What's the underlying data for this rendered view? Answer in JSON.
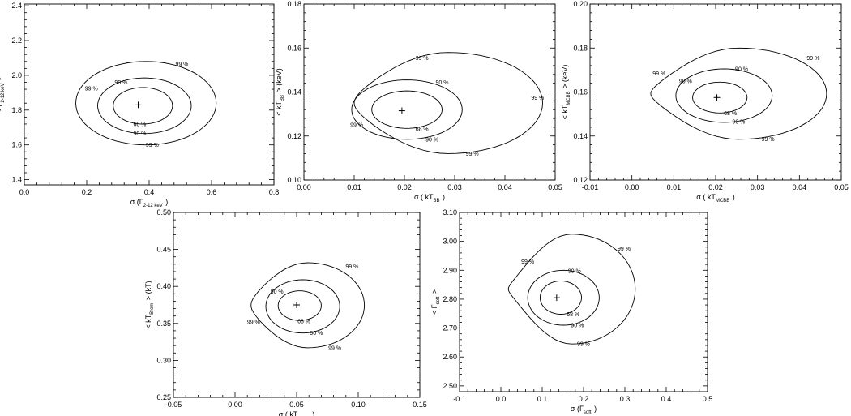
{
  "chart_data": [
    {
      "type": "contour",
      "xlabel_main": "σ (Γ",
      "xlabel_sub": "2-12 keV",
      "xlabel_tail": ")",
      "ylabel_main": "< Γ",
      "ylabel_sub": "2-12 keV",
      "ylabel_tail": ">",
      "xlim": [
        0.0,
        0.8
      ],
      "ylim": [
        1.37,
        2.41
      ],
      "xticks": [
        0.0,
        0.2,
        0.4,
        0.6,
        0.8
      ],
      "xticklabels": [
        "0.0",
        "0.2",
        "0.4",
        "0.6",
        "0.8"
      ],
      "yticks": [
        1.4,
        1.6,
        1.8,
        2.0,
        2.2,
        2.4
      ],
      "yticklabels": [
        "1.4",
        "1.6",
        "1.8",
        "2.0",
        "2.2",
        "2.4"
      ],
      "best_fit": {
        "x": 0.365,
        "y": 1.83
      },
      "contours": [
        {
          "level": "68 %",
          "xmin": 0.285,
          "xmax": 0.475,
          "ymin": 1.72,
          "ymax": 1.93,
          "pinch": 0.0
        },
        {
          "level": "90 %",
          "xmin": 0.235,
          "xmax": 0.535,
          "ymin": 1.665,
          "ymax": 1.985,
          "pinch": 0.0
        },
        {
          "level": "99 %",
          "xmin": 0.165,
          "xmax": 0.615,
          "ymin": 1.6,
          "ymax": 2.08,
          "pinch": 0.0
        }
      ],
      "contour_labels": [
        {
          "text": "68 %",
          "x": 0.37,
          "y": 1.72
        },
        {
          "text": "90 %",
          "x": 0.37,
          "y": 1.665
        },
        {
          "text": "90 %",
          "x": 0.31,
          "y": 1.96
        },
        {
          "text": "99 %",
          "x": 0.41,
          "y": 1.6
        },
        {
          "text": "99 %",
          "x": 0.505,
          "y": 2.065
        },
        {
          "text": "99 %",
          "x": 0.215,
          "y": 1.925
        }
      ]
    },
    {
      "type": "contour",
      "xlabel_main": "σ ( kT",
      "xlabel_sub": "BB",
      "xlabel_tail": ")",
      "ylabel_main": "< kT",
      "ylabel_sub": "BB",
      "ylabel_tail": "> (keV)",
      "xlim": [
        0.0,
        0.05
      ],
      "ylim": [
        0.1,
        0.18
      ],
      "xticks": [
        0.0,
        0.01,
        0.02,
        0.03,
        0.04,
        0.05
      ],
      "xticklabels": [
        "0.00",
        "0.01",
        "0.02",
        "0.03",
        "0.04",
        "0.05"
      ],
      "yticks": [
        0.1,
        0.12,
        0.14,
        0.16,
        0.18
      ],
      "yticklabels": [
        "0.10",
        "0.12",
        "0.14",
        "0.16",
        "0.18"
      ],
      "best_fit": {
        "x": 0.0195,
        "y": 0.1315
      },
      "contours": [
        {
          "level": "68 %",
          "xmin": 0.0135,
          "xmax": 0.0275,
          "ymin": 0.1235,
          "ymax": 0.1405,
          "pinch": 0.0
        },
        {
          "level": "90 %",
          "xmin": 0.0095,
          "xmax": 0.0315,
          "ymin": 0.1185,
          "ymax": 0.1455,
          "pinch": 0.0
        },
        {
          "level": "99 %",
          "xmin": 0.01,
          "xmax": 0.0475,
          "ymin": 0.112,
          "ymax": 0.158,
          "pinch": 0.45
        }
      ],
      "contour_labels": [
        {
          "text": "68 %",
          "x": 0.0235,
          "y": 0.1232
        },
        {
          "text": "90 %",
          "x": 0.0255,
          "y": 0.1185
        },
        {
          "text": "90 %",
          "x": 0.0275,
          "y": 0.1445
        },
        {
          "text": "99 %",
          "x": 0.0335,
          "y": 0.112
        },
        {
          "text": "99 %",
          "x": 0.0235,
          "y": 0.1555
        },
        {
          "text": "99 %",
          "x": 0.0465,
          "y": 0.1375
        },
        {
          "text": "99 %",
          "x": 0.0105,
          "y": 0.125
        }
      ]
    },
    {
      "type": "contour",
      "xlabel_main": "σ ( kT",
      "xlabel_sub": "MCBB",
      "xlabel_tail": ")",
      "ylabel_main": "< kT",
      "ylabel_sub": "MCBB",
      "ylabel_tail": "> (keV)",
      "xlim": [
        -0.01,
        0.05
      ],
      "ylim": [
        0.12,
        0.2
      ],
      "xticks": [
        -0.01,
        0.0,
        0.01,
        0.02,
        0.03,
        0.04,
        0.05
      ],
      "xticklabels": [
        "-0.01",
        "0.00",
        "0.01",
        "0.02",
        "0.03",
        "0.04",
        "0.05"
      ],
      "yticks": [
        0.12,
        0.14,
        0.16,
        0.18,
        0.2
      ],
      "yticklabels": [
        "0.12",
        "0.14",
        "0.16",
        "0.18",
        "0.20"
      ],
      "best_fit": {
        "x": 0.0203,
        "y": 0.1575
      },
      "contours": [
        {
          "level": "68 %",
          "xmin": 0.0145,
          "xmax": 0.0275,
          "ymin": 0.1505,
          "ymax": 0.1645,
          "pinch": 0.0
        },
        {
          "level": "90 %",
          "xmin": 0.0105,
          "xmax": 0.0335,
          "ymin": 0.1462,
          "ymax": 0.1705,
          "pinch": 0.0
        },
        {
          "level": "99 %",
          "xmin": 0.0045,
          "xmax": 0.0465,
          "ymin": 0.1385,
          "ymax": 0.18,
          "pinch": 0.55
        }
      ],
      "contour_labels": [
        {
          "text": "68 %",
          "x": 0.0235,
          "y": 0.1505
        },
        {
          "text": "90 %",
          "x": 0.0255,
          "y": 0.1465
        },
        {
          "text": "90 %",
          "x": 0.0262,
          "y": 0.1705
        },
        {
          "text": "90 %",
          "x": 0.0128,
          "y": 0.165
        },
        {
          "text": "99 %",
          "x": 0.0325,
          "y": 0.1387
        },
        {
          "text": "99 %",
          "x": 0.0433,
          "y": 0.1755
        },
        {
          "text": "99 %",
          "x": 0.0065,
          "y": 0.1685
        }
      ]
    },
    {
      "type": "contour",
      "xlabel_main": "σ ( kT",
      "xlabel_sub": "Brem",
      "xlabel_tail": ")",
      "ylabel_main": "< kT",
      "ylabel_sub": "Brem",
      "ylabel_tail": "> (kT)",
      "xlim": [
        -0.05,
        0.15
      ],
      "ylim": [
        0.25,
        0.5
      ],
      "xticks": [
        -0.05,
        0.0,
        0.05,
        0.1,
        0.15
      ],
      "xticklabels": [
        "-0.05",
        "0.00",
        "0.05",
        "0.10",
        "0.15"
      ],
      "yticks": [
        0.25,
        0.3,
        0.35,
        0.4,
        0.45,
        0.5
      ],
      "yticklabels": [
        "0.25",
        "0.30",
        "0.35",
        "0.40",
        "0.45",
        "0.50"
      ],
      "best_fit": {
        "x": 0.05,
        "y": 0.375
      },
      "contours": [
        {
          "level": "68 %",
          "xmin": 0.035,
          "xmax": 0.07,
          "ymin": 0.354,
          "ymax": 0.394,
          "pinch": 0.0
        },
        {
          "level": "90 %",
          "xmin": 0.025,
          "xmax": 0.085,
          "ymin": 0.337,
          "ymax": 0.409,
          "pinch": 0.0
        },
        {
          "level": "99 %",
          "xmin": 0.013,
          "xmax": 0.105,
          "ymin": 0.317,
          "ymax": 0.432,
          "pinch": 0.45
        }
      ],
      "contour_labels": [
        {
          "text": "68 %",
          "x": 0.056,
          "y": 0.353
        },
        {
          "text": "90 %",
          "x": 0.066,
          "y": 0.337
        },
        {
          "text": "90 %",
          "x": 0.034,
          "y": 0.393
        },
        {
          "text": "99 %",
          "x": 0.081,
          "y": 0.317
        },
        {
          "text": "99 %",
          "x": 0.095,
          "y": 0.427
        },
        {
          "text": "99 %",
          "x": 0.015,
          "y": 0.352
        }
      ]
    },
    {
      "type": "contour",
      "xlabel_main": "σ (Γ",
      "xlabel_sub": "soft",
      "xlabel_tail": ")",
      "ylabel_main": "< Γ",
      "ylabel_sub": "soft",
      "ylabel_tail": ">",
      "xlim": [
        -0.1,
        0.5
      ],
      "ylim": [
        2.48,
        3.1
      ],
      "xticks": [
        -0.1,
        0.0,
        0.1,
        0.2,
        0.3,
        0.4,
        0.5
      ],
      "xticklabels": [
        "-0.1",
        "0.0",
        "0.1",
        "0.2",
        "0.3",
        "0.4",
        "0.5"
      ],
      "yticks": [
        2.5,
        2.6,
        2.7,
        2.8,
        2.9,
        3.0,
        3.1
      ],
      "yticklabels": [
        "2.50",
        "2.60",
        "2.70",
        "2.80",
        "2.90",
        "3.00",
        "3.10"
      ],
      "best_fit": {
        "x": 0.135,
        "y": 2.805
      },
      "contours": [
        {
          "level": "68 %",
          "xmin": 0.095,
          "xmax": 0.195,
          "ymin": 2.748,
          "ymax": 2.863,
          "pinch": 0.0
        },
        {
          "level": "90 %",
          "xmin": 0.065,
          "xmax": 0.238,
          "ymin": 2.71,
          "ymax": 2.9,
          "pinch": 0.0
        },
        {
          "level": "99 %",
          "xmin": 0.018,
          "xmax": 0.325,
          "ymin": 2.645,
          "ymax": 3.025,
          "pinch": 0.7
        }
      ],
      "contour_labels": [
        {
          "text": "68 %",
          "x": 0.175,
          "y": 2.748
        },
        {
          "text": "90 %",
          "x": 0.185,
          "y": 2.71
        },
        {
          "text": "90 %",
          "x": 0.178,
          "y": 2.898
        },
        {
          "text": "99 %",
          "x": 0.2,
          "y": 2.645
        },
        {
          "text": "99 %",
          "x": 0.298,
          "y": 2.975
        },
        {
          "text": "99 %",
          "x": 0.065,
          "y": 2.93
        }
      ]
    }
  ]
}
